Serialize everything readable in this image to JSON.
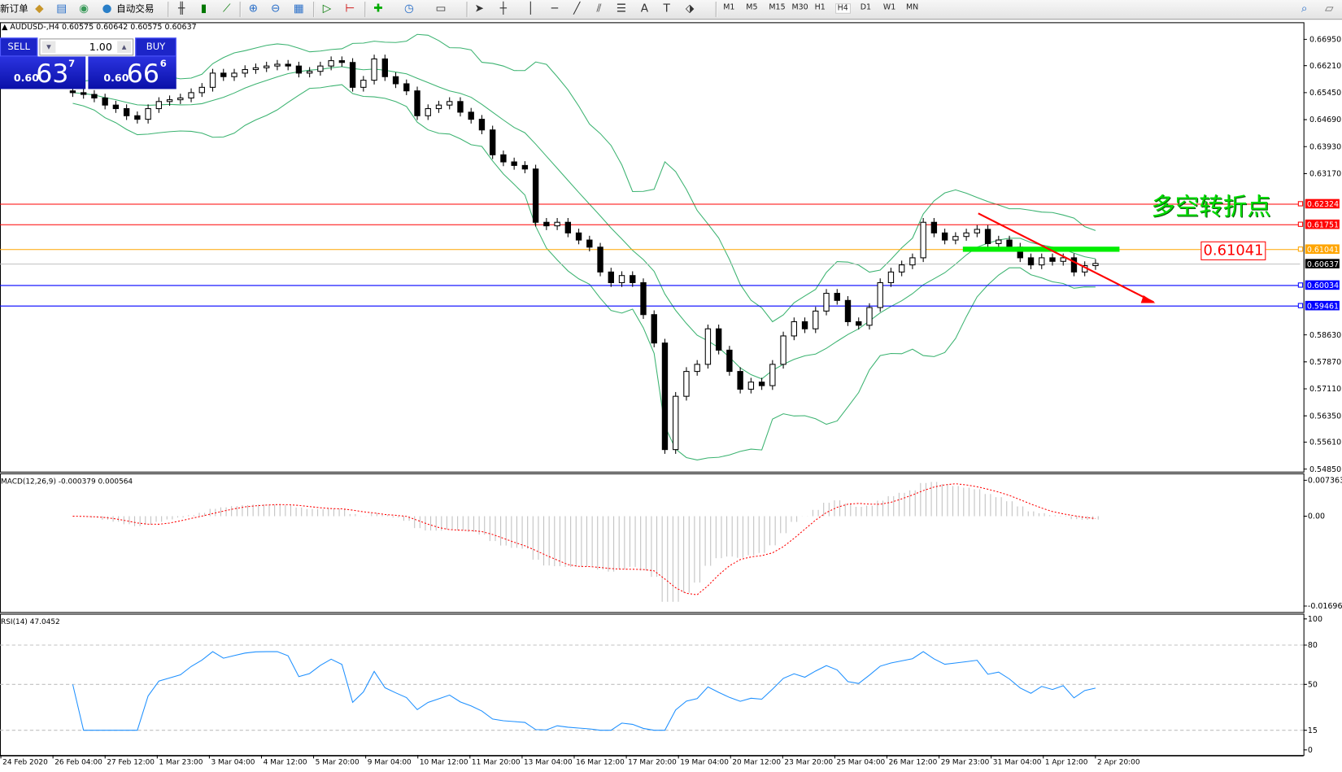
{
  "toolbar": {
    "new_order_label": "新订单",
    "auto_trading_label": "自动交易",
    "icons": [
      "market-watch-icon",
      "navigator-icon",
      "signals-icon",
      "bar-chart-icon",
      "candlestick-icon",
      "line-chart-icon",
      "zoom-in-icon",
      "zoom-out-icon",
      "tile-windows-icon",
      "autoscroll-icon",
      "chart-shift-icon",
      "indicators-icon",
      "periods-icon",
      "templates-icon",
      "cursor-icon",
      "crosshair-icon",
      "vertical-line-icon",
      "horizontal-line-icon",
      "trendline-icon",
      "equidistant-channel-icon",
      "fibonacci-icon",
      "text-icon",
      "text-label-icon",
      "arrows-icon"
    ],
    "periods": [
      "M1",
      "M5",
      "M15",
      "M30",
      "H1",
      "H4",
      "D1",
      "W1",
      "MN"
    ],
    "active_period": "H4"
  },
  "chart_header": "AUDUSD-,H4  0.60575 0.60642 0.60575 0.60637",
  "one_click": {
    "sell_label": "SELL",
    "buy_label": "BUY",
    "lot": "1.00",
    "sell_prefix": "0.60",
    "sell_big": "63",
    "sell_sup": "7",
    "buy_prefix": "0.60",
    "buy_big": "66",
    "buy_sup": "6"
  },
  "annotation_text": "多空转折点",
  "annotation_price_label": "0.61041",
  "colors": {
    "bands": "#3cb371",
    "macd_hist": "#c0c0c0",
    "macd_signal": "#ff0000",
    "rsi": "#1e90ff",
    "arrow": "#ff0000",
    "green_zone": "#00ee00"
  },
  "chart_data": [
    {
      "type": "candlestick",
      "symbol": "AUDUSD-",
      "timeframe": "H4",
      "ylim": [
        0.5485,
        0.6695
      ],
      "y_ticks": [
        "0.66950",
        "0.66210",
        "0.65450",
        "0.64690",
        "0.63930",
        "0.63170",
        "0.58630",
        "0.57870",
        "0.57110",
        "0.56350",
        "0.55610",
        "0.54850"
      ],
      "x_ticks": [
        "24 Feb 2020",
        "26 Feb 04:00",
        "27 Feb 12:00",
        "1 Mar 23:00",
        "3 Mar 04:00",
        "4 Mar 12:00",
        "5 Mar 20:00",
        "9 Mar 04:00",
        "10 Mar 12:00",
        "11 Mar 20:00",
        "13 Mar 04:00",
        "16 Mar 12:00",
        "17 Mar 20:00",
        "19 Mar 04:00",
        "20 Mar 12:00",
        "23 Mar 20:00",
        "25 Mar 04:00",
        "26 Mar 12:00",
        "29 Mar 23:00",
        "31 Mar 04:00",
        "1 Apr 12:00",
        "2 Apr 20:00"
      ],
      "closes": [
        0.6545,
        0.654,
        0.653,
        0.651,
        0.65,
        0.648,
        0.647,
        0.65,
        0.652,
        0.6525,
        0.653,
        0.6545,
        0.656,
        0.66,
        0.659,
        0.66,
        0.661,
        0.6615,
        0.662,
        0.6625,
        0.662,
        0.66,
        0.6605,
        0.662,
        0.6635,
        0.663,
        0.656,
        0.658,
        0.664,
        0.659,
        0.657,
        0.655,
        0.648,
        0.65,
        0.651,
        0.652,
        0.649,
        0.647,
        0.644,
        0.637,
        0.635,
        0.634,
        0.633,
        0.618,
        0.617,
        0.618,
        0.615,
        0.613,
        0.611,
        0.604,
        0.601,
        0.603,
        0.601,
        0.592,
        0.584,
        0.554,
        0.569,
        0.576,
        0.578,
        0.588,
        0.582,
        0.576,
        0.571,
        0.573,
        0.572,
        0.578,
        0.586,
        0.59,
        0.588,
        0.593,
        0.598,
        0.596,
        0.59,
        0.589,
        0.594,
        0.601,
        0.604,
        0.606,
        0.608,
        0.618,
        0.615,
        0.613,
        0.614,
        0.615,
        0.616,
        0.612,
        0.613,
        0.611,
        0.608,
        0.606,
        0.608,
        0.607,
        0.608,
        0.604,
        0.6058,
        0.6064
      ],
      "indicator": "Bollinger Bands",
      "horizontal_lines": [
        {
          "price": "0.62324",
          "color": "#ff0000"
        },
        {
          "price": "0.61751",
          "color": "#ff0000"
        },
        {
          "price": "0.61041",
          "color": "#ffa500"
        },
        {
          "price": "0.60637",
          "color": "#000000",
          "kind": "bid"
        },
        {
          "price": "0.60034",
          "color": "#0000ff"
        },
        {
          "price": "0.59461",
          "color": "#0000ff"
        }
      ],
      "green_zone_price": 0.61041,
      "trend_arrow": {
        "from_price": 0.6205,
        "to_price": 0.5955
      }
    },
    {
      "type": "bar+line",
      "title": "MACD(12,26,9) -0.000379 0.000564",
      "y_ticks": [
        "0.007363",
        "0.00",
        "-0.01696"
      ],
      "ylim": [
        -0.01696,
        0.007363
      ]
    },
    {
      "type": "line",
      "title": "RSI(14) 47.0452",
      "y_ticks": [
        "100",
        "80",
        "50",
        "15",
        "0"
      ],
      "levels": [
        80,
        50,
        15
      ],
      "ylim": [
        0,
        100
      ]
    }
  ]
}
